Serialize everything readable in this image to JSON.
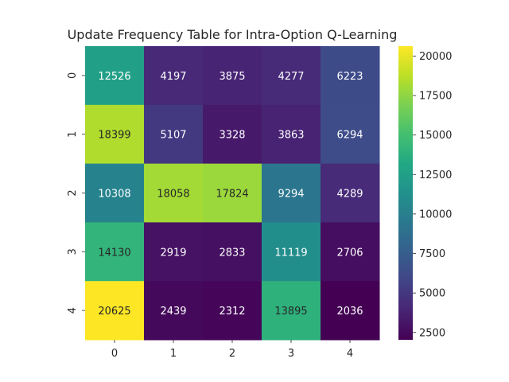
{
  "chart_data": {
    "type": "heatmap",
    "title": "Update Frequency Table for Intra-Option Q-Learning",
    "xlabel": "",
    "ylabel": "",
    "x_categories": [
      "0",
      "1",
      "2",
      "3",
      "4"
    ],
    "y_categories": [
      "0",
      "1",
      "2",
      "3",
      "4"
    ],
    "values": [
      [
        12526,
        4197,
        3875,
        4277,
        6223
      ],
      [
        18399,
        5107,
        3328,
        3863,
        6294
      ],
      [
        10308,
        18058,
        17824,
        9294,
        4289
      ],
      [
        14130,
        2919,
        2833,
        11119,
        2706
      ],
      [
        20625,
        2439,
        2312,
        13895,
        2036
      ]
    ],
    "colormap": "viridis",
    "colorbar": {
      "min": 2036,
      "max": 20625,
      "ticks": [
        2500,
        5000,
        7500,
        10000,
        12500,
        15000,
        17500,
        20000
      ]
    },
    "annotations": true,
    "grid": false
  }
}
